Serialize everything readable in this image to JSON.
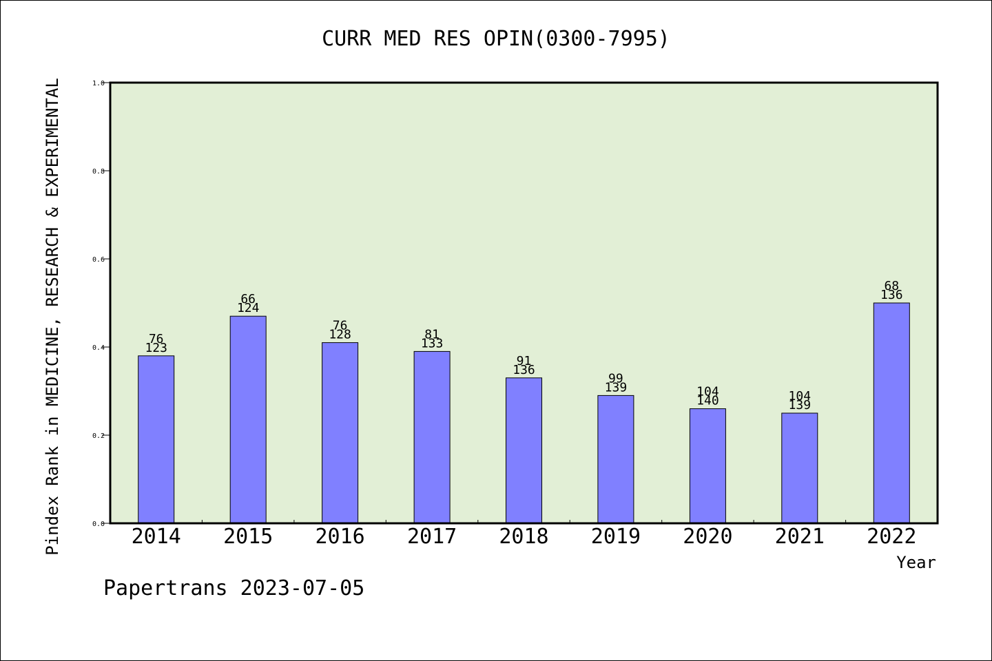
{
  "chart_data": {
    "type": "bar",
    "title": "CURR MED RES OPIN(0300-7995)",
    "xlabel": "Year",
    "ylabel": "Pindex Rank in MEDICINE, RESEARCH & EXPERIMENTAL",
    "ylim": [
      0,
      1.0
    ],
    "yticks": [
      "0.0",
      "0.2",
      "0.4",
      "0.6",
      "0.8",
      "1.0"
    ],
    "categories": [
      "2014",
      "2015",
      "2016",
      "2017",
      "2018",
      "2019",
      "2020",
      "2021",
      "2022"
    ],
    "values": [
      0.38,
      0.47,
      0.41,
      0.39,
      0.33,
      0.29,
      0.26,
      0.25,
      0.5
    ],
    "rank_labels": [
      "76",
      "66",
      "76",
      "81",
      "91",
      "99",
      "104",
      "104",
      "68"
    ],
    "total_labels": [
      "123",
      "124",
      "128",
      "133",
      "136",
      "139",
      "140",
      "139",
      "136"
    ],
    "grid": false,
    "colors": {
      "plot_background": "#e2efd6",
      "bar_fill": "#8080ff",
      "bar_stroke": "#000000"
    }
  },
  "footer": {
    "text": "Papertrans 2023-07-05"
  }
}
